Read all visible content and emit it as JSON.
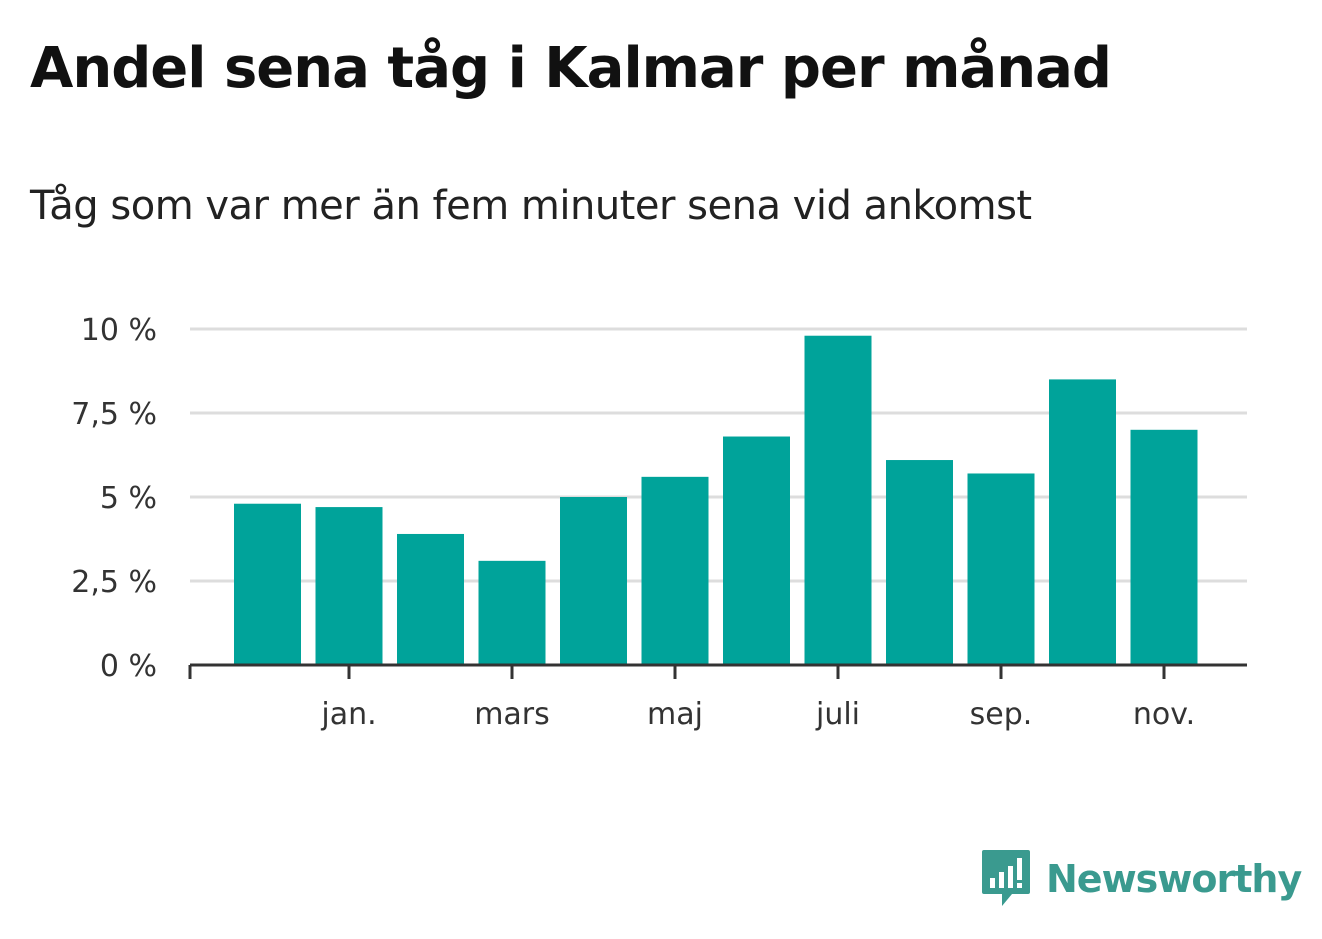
{
  "chart_data": {
    "type": "bar",
    "title": "Andel sena tåg i Kalmar per månad",
    "subtitle": "Tåg som var mer än fem minuter sena vid ankomst",
    "xlabel": "",
    "ylabel": "",
    "ylim": [
      0,
      10
    ],
    "yticks": [
      {
        "value": 0,
        "label": "0 %"
      },
      {
        "value": 2.5,
        "label": "2,5 %"
      },
      {
        "value": 5,
        "label": "5 %"
      },
      {
        "value": 7.5,
        "label": "7,5 %"
      },
      {
        "value": 10,
        "label": "10 %"
      }
    ],
    "xticks": [
      {
        "index": 1,
        "label": "jan."
      },
      {
        "index": 3,
        "label": "mars"
      },
      {
        "index": 5,
        "label": "maj"
      },
      {
        "index": 7,
        "label": "juli"
      },
      {
        "index": 9,
        "label": "sep."
      },
      {
        "index": 11,
        "label": "nov."
      }
    ],
    "values": [
      4.8,
      4.7,
      3.9,
      3.1,
      5.0,
      5.6,
      6.8,
      9.8,
      6.1,
      5.7,
      8.5,
      7.0
    ],
    "bar_color": "#00a39a",
    "grid": true,
    "legend": "none"
  },
  "branding": {
    "logo_text": "Newsworthy",
    "logo_icon": "newsworthy-logo-icon",
    "logo_color": "#3a9a8f"
  }
}
